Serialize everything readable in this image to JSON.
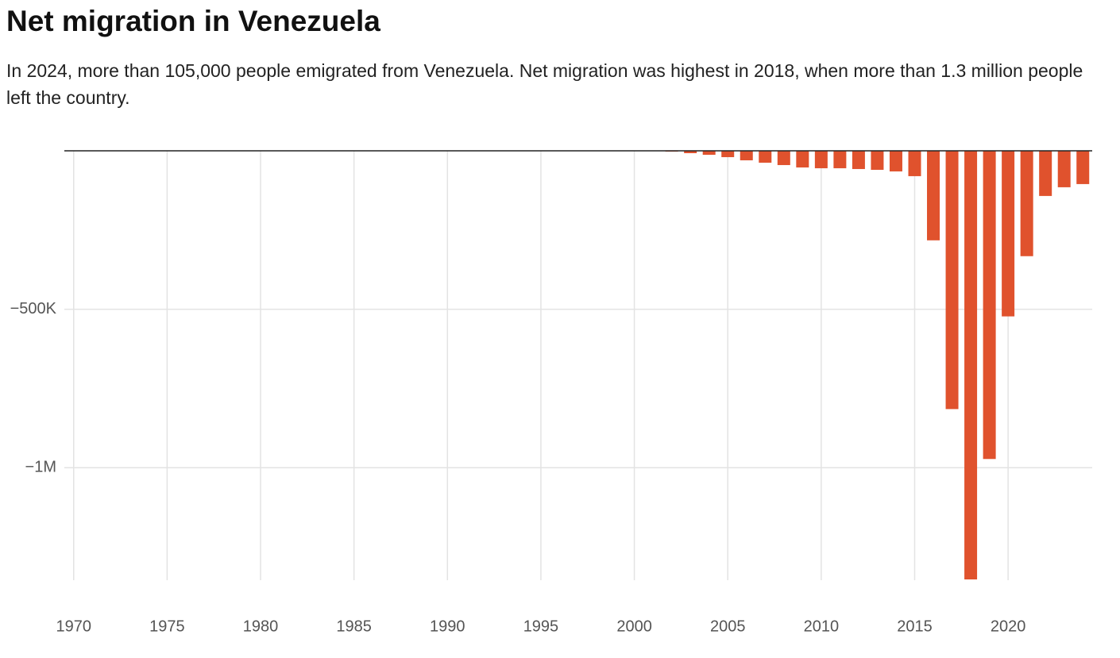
{
  "chart_data": {
    "type": "bar",
    "title": "Net migration in Venezuela",
    "subtitle": "In 2024, more than 105,000 people emigrated from Venezuela. Net migration was highest in 2018, when more than 1.3 million people left the country.",
    "x": [
      1970,
      1971,
      1972,
      1973,
      1974,
      1975,
      1976,
      1977,
      1978,
      1979,
      1980,
      1981,
      1982,
      1983,
      1984,
      1985,
      1986,
      1987,
      1988,
      1989,
      1990,
      1991,
      1992,
      1993,
      1994,
      1995,
      1996,
      1997,
      1998,
      1999,
      2000,
      2001,
      2002,
      2003,
      2004,
      2005,
      2006,
      2007,
      2008,
      2009,
      2010,
      2011,
      2012,
      2013,
      2014,
      2015,
      2016,
      2017,
      2018,
      2019,
      2020,
      2021,
      2022,
      2023,
      2024
    ],
    "values": [
      0,
      0,
      0,
      0,
      0,
      0,
      0,
      0,
      0,
      0,
      0,
      0,
      0,
      0,
      0,
      0,
      0,
      0,
      0,
      0,
      0,
      0,
      0,
      0,
      0,
      0,
      0,
      0,
      0,
      0,
      0,
      -1000,
      -2500,
      -7500,
      -12500,
      -20000,
      -30000,
      -37500,
      -45000,
      -52500,
      -55000,
      -55000,
      -57500,
      -60000,
      -65000,
      -80000,
      -282500,
      -815000,
      -1352500,
      -972500,
      -522500,
      -332500,
      -142500,
      -115000,
      -105000
    ],
    "color": "#e0522d",
    "xlim": [
      1969.5,
      2024.5
    ],
    "xticks": [
      1970,
      1975,
      1980,
      1985,
      1990,
      1995,
      2000,
      2005,
      2010,
      2015,
      2020
    ],
    "ylim": [
      -1355000,
      0
    ],
    "yticks": [
      {
        "value": -500000,
        "label": "−500K"
      },
      {
        "value": -1000000,
        "label": "−1M"
      }
    ],
    "grid": true
  }
}
